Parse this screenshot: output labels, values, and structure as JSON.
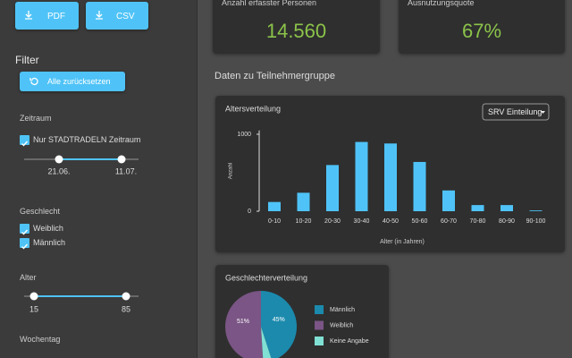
{
  "sidebar": {
    "downloads": [
      "PDF",
      "CSV"
    ],
    "filter_title": "Filter",
    "reset_button": "Alle zurücksetzen",
    "zeitraum": {
      "title": "Zeitraum",
      "checkbox": {
        "label": "Nur STADTRADELN Zeitraum",
        "checked": true
      },
      "range": [
        "21.06.",
        "11.07."
      ]
    },
    "geschlecht": {
      "title": "Geschlecht",
      "options": [
        {
          "label": "Weiblich",
          "checked": true
        },
        {
          "label": "Männlich",
          "checked": true
        }
      ]
    },
    "alter": {
      "title": "Alter",
      "range": [
        15,
        85
      ]
    },
    "wochentag": {
      "title": "Wochentag"
    }
  },
  "kpis": [
    {
      "label": "Anzahl erfasster Personen",
      "value": "14.560"
    },
    {
      "label": "Ausnutzungsquote",
      "value": "67%"
    }
  ],
  "section_title": "Daten zu Teilnehmergruppe",
  "age_chart": {
    "type": "bar",
    "title": "Altersverteilung",
    "dropdown": "SRV Einteilung",
    "categories": [
      "0-10",
      "10-20",
      "20-30",
      "30-40",
      "40-50",
      "50-60",
      "60-70",
      "70-80",
      "80-90",
      "90-100"
    ],
    "values": [
      120,
      240,
      600,
      900,
      880,
      640,
      270,
      80,
      80,
      10
    ],
    "color": "#4fc3f7",
    "ylim": [
      0,
      1050
    ],
    "yticks": [
      0,
      1000
    ],
    "ylabel": "Anzahl",
    "xlabel": "Alter (in Jahren)"
  },
  "gender_chart": {
    "type": "pie",
    "title": "Geschlechterverteilung",
    "categories": [
      "Männlich",
      "Weiblich",
      "Keine Angabe"
    ],
    "values": [
      45,
      51,
      4
    ],
    "value_labels": [
      "45%",
      "51%",
      null
    ],
    "colors": [
      "#1b8aad",
      "#7a5585",
      "#80e0d4"
    ]
  }
}
